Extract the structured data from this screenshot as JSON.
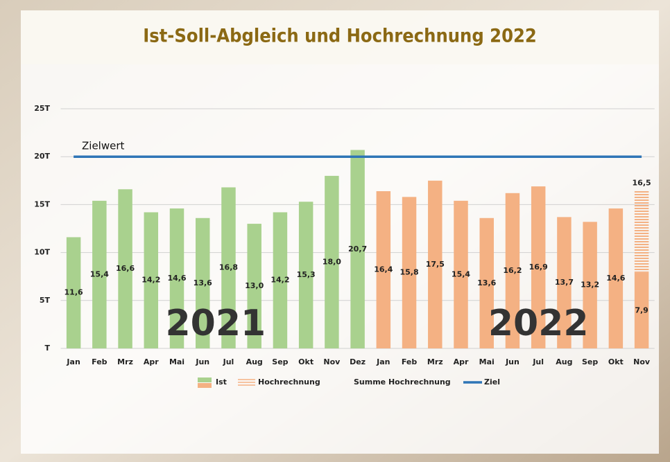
{
  "chart_data": {
    "type": "bar",
    "title": "Ist-Soll-Abgleich und Hochrechnung 2022",
    "categories": [
      "Jan",
      "Feb",
      "Mrz",
      "Apr",
      "Mai",
      "Jun",
      "Jul",
      "Aug",
      "Sep",
      "Okt",
      "Nov",
      "Dez",
      "Jan",
      "Feb",
      "Mrz",
      "Apr",
      "Mai",
      "Jun",
      "Jul",
      "Aug",
      "Sep",
      "Okt",
      "Nov"
    ],
    "ylim": [
      0,
      25
    ],
    "yticks": [
      {
        "value": 0,
        "label": "T"
      },
      {
        "value": 5,
        "label": "5T"
      },
      {
        "value": 10,
        "label": "10T"
      },
      {
        "value": 15,
        "label": "15T"
      },
      {
        "value": 20,
        "label": "20T"
      },
      {
        "value": 25,
        "label": "25T"
      }
    ],
    "grid": true,
    "series": [
      {
        "name": "Ist",
        "colors": [
          "#a9d18e",
          "#a9d18e",
          "#a9d18e",
          "#a9d18e",
          "#a9d18e",
          "#a9d18e",
          "#a9d18e",
          "#a9d18e",
          "#a9d18e",
          "#a9d18e",
          "#a9d18e",
          "#a9d18e",
          "#f4b183",
          "#f4b183",
          "#f4b183",
          "#f4b183",
          "#f4b183",
          "#f4b183",
          "#f4b183",
          "#f4b183",
          "#f4b183",
          "#f4b183",
          "#f4b183"
        ],
        "values": [
          11.6,
          15.4,
          16.6,
          14.2,
          14.6,
          13.6,
          16.8,
          13.0,
          14.2,
          15.3,
          18.0,
          20.7,
          16.4,
          15.8,
          17.5,
          15.4,
          13.6,
          16.2,
          16.9,
          13.7,
          13.2,
          14.6,
          7.9
        ],
        "value_labels": [
          "11,6",
          "15,4",
          "16,6",
          "14,2",
          "14,6",
          "13,6",
          "16,8",
          "13,0",
          "14,2",
          "15,3",
          "18,0",
          "20,7",
          "16,4",
          "15,8",
          "17,5",
          "15,4",
          "13,6",
          "16,2",
          "16,9",
          "13,7",
          "13,2",
          "14,6",
          "7,9"
        ]
      },
      {
        "name": "Hochrechnung",
        "color": "#f4b183",
        "values": [
          null,
          null,
          null,
          null,
          null,
          null,
          null,
          null,
          null,
          null,
          null,
          null,
          null,
          null,
          null,
          null,
          null,
          null,
          null,
          null,
          null,
          null,
          8.6
        ]
      },
      {
        "name": "Summe Hochrechnung",
        "values": [
          null,
          null,
          null,
          null,
          null,
          null,
          null,
          null,
          null,
          null,
          null,
          null,
          null,
          null,
          null,
          null,
          null,
          null,
          null,
          null,
          null,
          null,
          16.5
        ],
        "value_labels": [
          null,
          null,
          null,
          null,
          null,
          null,
          null,
          null,
          null,
          null,
          null,
          null,
          null,
          null,
          null,
          null,
          null,
          null,
          null,
          null,
          null,
          null,
          "16,5"
        ]
      },
      {
        "name": "Ziel",
        "type": "line",
        "color": "#2e75b6",
        "values": [
          20,
          20,
          20,
          20,
          20,
          20,
          20,
          20,
          20,
          20,
          20,
          20,
          20,
          20,
          20,
          20,
          20,
          20,
          20,
          20,
          20,
          20,
          20
        ]
      }
    ],
    "annotations": [
      "Zielwert",
      "2021",
      "2022"
    ]
  }
}
